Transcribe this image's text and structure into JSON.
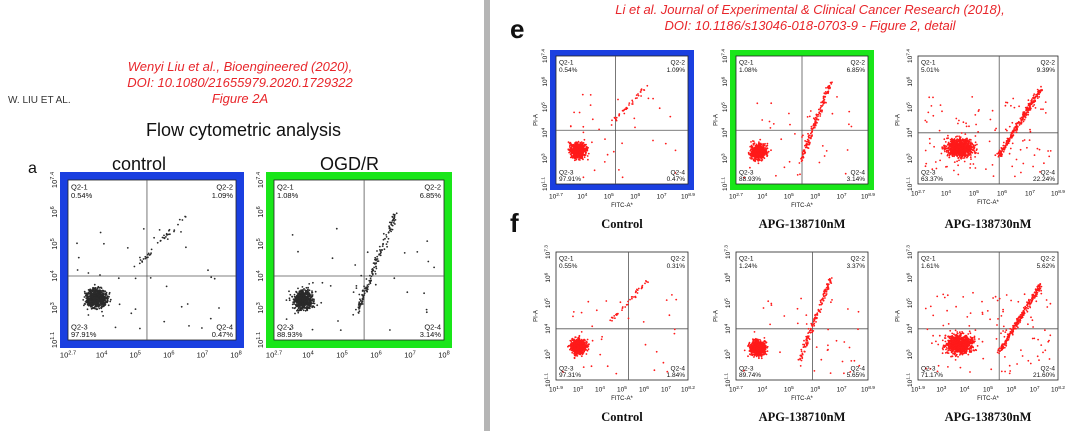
{
  "left_panel": {
    "running_head": "W. LIU ET AL.",
    "citation": [
      "Wenyi Liu et al., Bioengineered (2020),",
      "DOI: 10.1080/21655979.2020.1729322",
      "Figure 2A"
    ],
    "title": "Flow cytometric analysis",
    "panel_letter": "a"
  },
  "right_panel": {
    "citation": [
      "Li et al. Journal of Experimental & Clinical Cancer Research (2018),",
      "DOI: 10.1186/s13046-018-0703-9 - Figure 2, detail"
    ],
    "letters": [
      "e",
      "f"
    ]
  },
  "colors": {
    "frame_blue": "#1a3fe0",
    "frame_green": "#19e619",
    "dots_left": "#2a2a2a",
    "dots_right": "#ff1a1a",
    "citation_red": "#e8262b"
  },
  "chart_data": [
    {
      "id": "a1",
      "type": "scatter",
      "title": "control",
      "frame": "blue",
      "xlabel": "",
      "ylabel": "",
      "x_ticks": [
        "10",
        "4",
        "10",
        "5",
        "10",
        "6",
        "10",
        "7",
        "10",
        "8"
      ],
      "x_ticks_sup": [
        "2.7",
        "",
        "",
        "",
        ""
      ],
      "y_ticks_sup": [
        "7.4",
        "",
        "",
        "",
        "1.1"
      ],
      "quadrants": {
        "q1": "Q2-1",
        "v1": "0.54%",
        "q2": "Q2-2",
        "v2": "1.09%",
        "q3": "Q2-3",
        "v3": "97.91%",
        "q4": "Q2-4",
        "v4": "0.47%"
      }
    },
    {
      "id": "a2",
      "type": "scatter",
      "title": "OGD/R",
      "frame": "green",
      "xlabel": "",
      "ylabel": "",
      "quadrants": {
        "q1": "Q2-1",
        "v1": "1.08%",
        "q2": "Q2-2",
        "v2": "6.85%",
        "q3": "Q2-3",
        "v3": "88.93%",
        "q4": "Q2-4",
        "v4": "3.14%"
      }
    },
    {
      "id": "e1",
      "type": "scatter",
      "title": "Control",
      "frame": "blue",
      "xlabel": "FITC-A*",
      "ylabel": "PI-A",
      "quadrants": {
        "q1": "Q2-1",
        "v1": "0.54%",
        "q2": "Q2-2",
        "v2": "1.09%",
        "q3": "Q2-3",
        "v3": "97.91%",
        "q4": "Q2-4",
        "v4": "0.47%"
      }
    },
    {
      "id": "e2",
      "type": "scatter",
      "title": "APG-138710nM",
      "frame": "green",
      "xlabel": "FITC-A*",
      "ylabel": "PI-A",
      "quadrants": {
        "q1": "Q2-1",
        "v1": "1.08%",
        "q2": "Q2-2",
        "v2": "6.85%",
        "q3": "Q2-3",
        "v3": "88.93%",
        "q4": "Q2-4",
        "v4": "3.14%"
      }
    },
    {
      "id": "e3",
      "type": "scatter",
      "title": "APG-138730nM",
      "frame": "none",
      "xlabel": "FITC-A*",
      "ylabel": "PI-A",
      "quadrants": {
        "q1": "Q2-1",
        "v1": "5.01%",
        "q2": "Q2-2",
        "v2": "9.39%",
        "q3": "Q2-3",
        "v3": "63.37%",
        "q4": "Q2-4",
        "v4": "22.24%"
      }
    },
    {
      "id": "f1",
      "type": "scatter",
      "title": "Control",
      "frame": "none",
      "xlabel": "FITC-A*",
      "ylabel": "PI-A",
      "quadrants": {
        "q1": "Q2-1",
        "v1": "0.55%",
        "q2": "Q2-2",
        "v2": "0.31%",
        "q3": "Q2-3",
        "v3": "97.31%",
        "q4": "Q2-4",
        "v4": "1.84%"
      }
    },
    {
      "id": "f2",
      "type": "scatter",
      "title": "APG-138710nM",
      "frame": "none",
      "xlabel": "FITC-A*",
      "ylabel": "PI-A",
      "quadrants": {
        "q1": "Q2-1",
        "v1": "1.24%",
        "q2": "Q2-2",
        "v2": "3.37%",
        "q3": "Q2-3",
        "v3": "89.74%",
        "q4": "Q2-4",
        "v4": "5.65%"
      }
    },
    {
      "id": "f3",
      "type": "scatter",
      "title": "APG-138730nM",
      "frame": "none",
      "xlabel": "FITC-A*",
      "ylabel": "PI-A",
      "quadrants": {
        "q1": "Q2-1",
        "v1": "1.61%",
        "q2": "Q2-2",
        "v2": "5.62%",
        "q3": "Q2-3",
        "v3": "71.17%",
        "q4": "Q2-4",
        "v4": "21.60%"
      }
    }
  ]
}
